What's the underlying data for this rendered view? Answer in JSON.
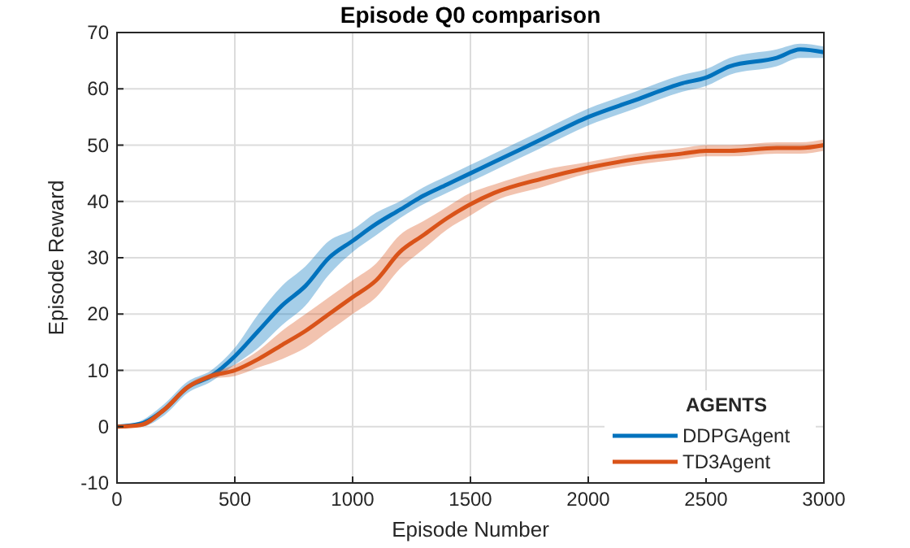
{
  "chart_data": {
    "type": "line",
    "title": "Episode Q0 comparison",
    "xlabel": "Episode Number",
    "ylabel": "Episode Reward",
    "legend_title": "AGENTS",
    "legend": "bottom right",
    "grid": true,
    "xlim": [
      0,
      3000
    ],
    "xticks": [
      0,
      500,
      1000,
      1500,
      2000,
      2500,
      3000
    ],
    "ylim": [
      -10,
      70
    ],
    "yticks": [
      -10,
      0,
      10,
      20,
      30,
      40,
      50,
      60,
      70
    ],
    "x": [
      0,
      100,
      200,
      300,
      400,
      500,
      600,
      700,
      800,
      900,
      1000,
      1100,
      1200,
      1300,
      1400,
      1500,
      1600,
      1800,
      2000,
      2200,
      2400,
      2500,
      2600,
      2800,
      2900,
      3000
    ],
    "series": [
      {
        "name": "DDPGAgent",
        "color": "#0072bd",
        "values": [
          0,
          0.5,
          3,
          7,
          9,
          12.5,
          17,
          21.5,
          25,
          30,
          33,
          36,
          38.5,
          41,
          43,
          45,
          47,
          51,
          55,
          58,
          61,
          62,
          64,
          65.5,
          67,
          66.5
        ],
        "lower": [
          0,
          0,
          2,
          6,
          8,
          11,
          14,
          18,
          21.5,
          27,
          31,
          34,
          37,
          39.5,
          41.5,
          43.5,
          45.5,
          49.5,
          53.5,
          56.5,
          59.5,
          60.5,
          62.5,
          64,
          65.5,
          65.5
        ],
        "upper": [
          0,
          1,
          4,
          8,
          10,
          14,
          20,
          25,
          28.5,
          33,
          35,
          38,
          40,
          42.5,
          44.5,
          46.5,
          48.5,
          52.5,
          56.5,
          59.5,
          62.5,
          63.5,
          65.5,
          67,
          68,
          67.5
        ]
      },
      {
        "name": "TD3Agent",
        "color": "#d95319",
        "values": [
          0,
          0.3,
          3,
          7,
          9,
          10,
          12,
          14.5,
          17,
          20,
          23,
          26,
          31,
          34,
          37,
          39.5,
          41.5,
          44,
          46,
          47.5,
          48.5,
          49,
          49,
          49.5,
          49.5,
          50
        ],
        "lower": [
          0,
          0,
          2.5,
          6.5,
          8.5,
          9,
          10.5,
          12,
          14,
          17,
          20,
          23,
          28,
          31.5,
          35,
          37.5,
          40,
          42.5,
          45,
          46.5,
          47.5,
          48,
          48,
          48.5,
          48.5,
          49
        ],
        "upper": [
          0,
          0.6,
          3.5,
          7.5,
          9.5,
          11,
          13.5,
          17,
          20,
          23,
          26,
          29,
          34,
          36.5,
          39,
          41.5,
          43,
          45.5,
          47,
          48.5,
          49.5,
          50,
          50,
          50.5,
          50.5,
          51
        ]
      }
    ]
  }
}
